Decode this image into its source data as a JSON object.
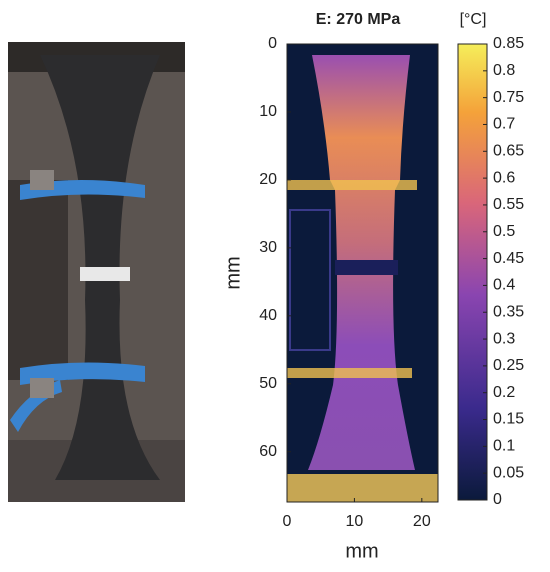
{
  "figure": {
    "title": "E: 270 MPa",
    "colorbar_label": "[°C]",
    "x_label": "mm",
    "y_label": "mm",
    "xlim": [
      0,
      22.4
    ],
    "xticks": [
      0,
      10,
      20
    ],
    "ylim": [
      0,
      67.4
    ],
    "yticks": [
      0,
      10,
      20,
      30,
      40,
      50,
      60
    ],
    "clim": [
      0,
      0.85
    ],
    "cticks": [
      0,
      0.05,
      0.1,
      0.15,
      0.2,
      0.25,
      0.3,
      0.35,
      0.4,
      0.45,
      0.5,
      0.55,
      0.6,
      0.65,
      0.7,
      0.75,
      0.8,
      0.85
    ]
  }
}
